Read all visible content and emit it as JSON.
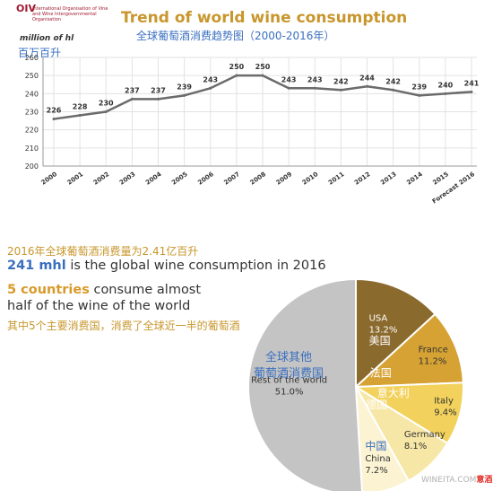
{
  "logo": {
    "mark": "OIV",
    "text": "International Organisation of Vine and Wine Intergovernmental Organisation"
  },
  "header": {
    "title_en": "Trend of world wine consumption",
    "title_zh": "全球葡萄酒消费趋势图（2000-2016年）",
    "unit_en": "million of hl",
    "unit_zh": "百万百升"
  },
  "summary": {
    "stat_zh": "2016年全球葡萄酒消费量为2.41亿百升",
    "stat_en_highlight": "241 mhl",
    "stat_en_rest": " is the global wine consumption in 2016",
    "top5_en_highlight": "5 countries",
    "top5_en_line1_rest": " consume almost",
    "top5_en_line2": "half of the wine of the world",
    "top5_zh": "其中5个主要消费国，消费了全球近一半的葡萄酒"
  },
  "watermark": {
    "left": "WINEITA.COM",
    "right": "意酒网"
  },
  "colors": {
    "line": "#6b6b6b",
    "grid": "#e2e2e2",
    "title": "#c8962c",
    "zh_text": "#3a6fbf"
  },
  "chart_data": [
    {
      "type": "line",
      "title": "Trend of world wine consumption",
      "ylabel": "million of hl",
      "x": [
        "2000",
        "2001",
        "2002",
        "2003",
        "2004",
        "2005",
        "2006",
        "2007",
        "2008",
        "2009",
        "2010",
        "2011",
        "2012",
        "2013",
        "2014",
        "2015",
        "Forecast 2016"
      ],
      "series": [
        {
          "values": [
            226,
            228,
            230,
            237,
            237,
            239,
            243,
            250,
            250,
            243,
            243,
            242,
            244,
            242,
            239,
            240,
            241
          ]
        }
      ],
      "data_labels": [
        "226",
        "228",
        "230",
        "237",
        "237",
        "239",
        "243",
        "250",
        "250",
        "243",
        "243",
        "242",
        "244",
        "242",
        "239",
        "240",
        "241"
      ],
      "ylim": [
        200,
        260
      ],
      "yticks": [
        200,
        210,
        220,
        230,
        240,
        250,
        260
      ],
      "grid": true
    },
    {
      "type": "pie",
      "slices": [
        {
          "label_en": "USA",
          "label_zh": "美国",
          "value": 13.2,
          "value_label": "13.2%",
          "color": "#8b6a2e",
          "text_color": "#ffffff"
        },
        {
          "label_en": "France",
          "label_zh": "法国",
          "value": 11.2,
          "value_label": "11.2%",
          "color": "#d6a233",
          "text_color": "#333333"
        },
        {
          "label_en": "Italy",
          "label_zh": "意大利",
          "value": 9.4,
          "value_label": "9.4%",
          "color": "#f2d25c",
          "text_color": "#333333"
        },
        {
          "label_en": "Germany",
          "label_zh": "德国",
          "value": 8.1,
          "value_label": "8.1%",
          "color": "#f7e7a6",
          "text_color": "#333333"
        },
        {
          "label_en": "China",
          "label_zh": "中国",
          "value": 7.2,
          "value_label": "7.2%",
          "color": "#fbf3d2",
          "text_color": "#333333"
        },
        {
          "label_en": "Rest of the world",
          "label_zh": "全球其他葡萄酒消费国",
          "value": 51.0,
          "value_label": "51.0%",
          "color": "#c4c4c4",
          "text_color": "#333333"
        }
      ]
    }
  ]
}
